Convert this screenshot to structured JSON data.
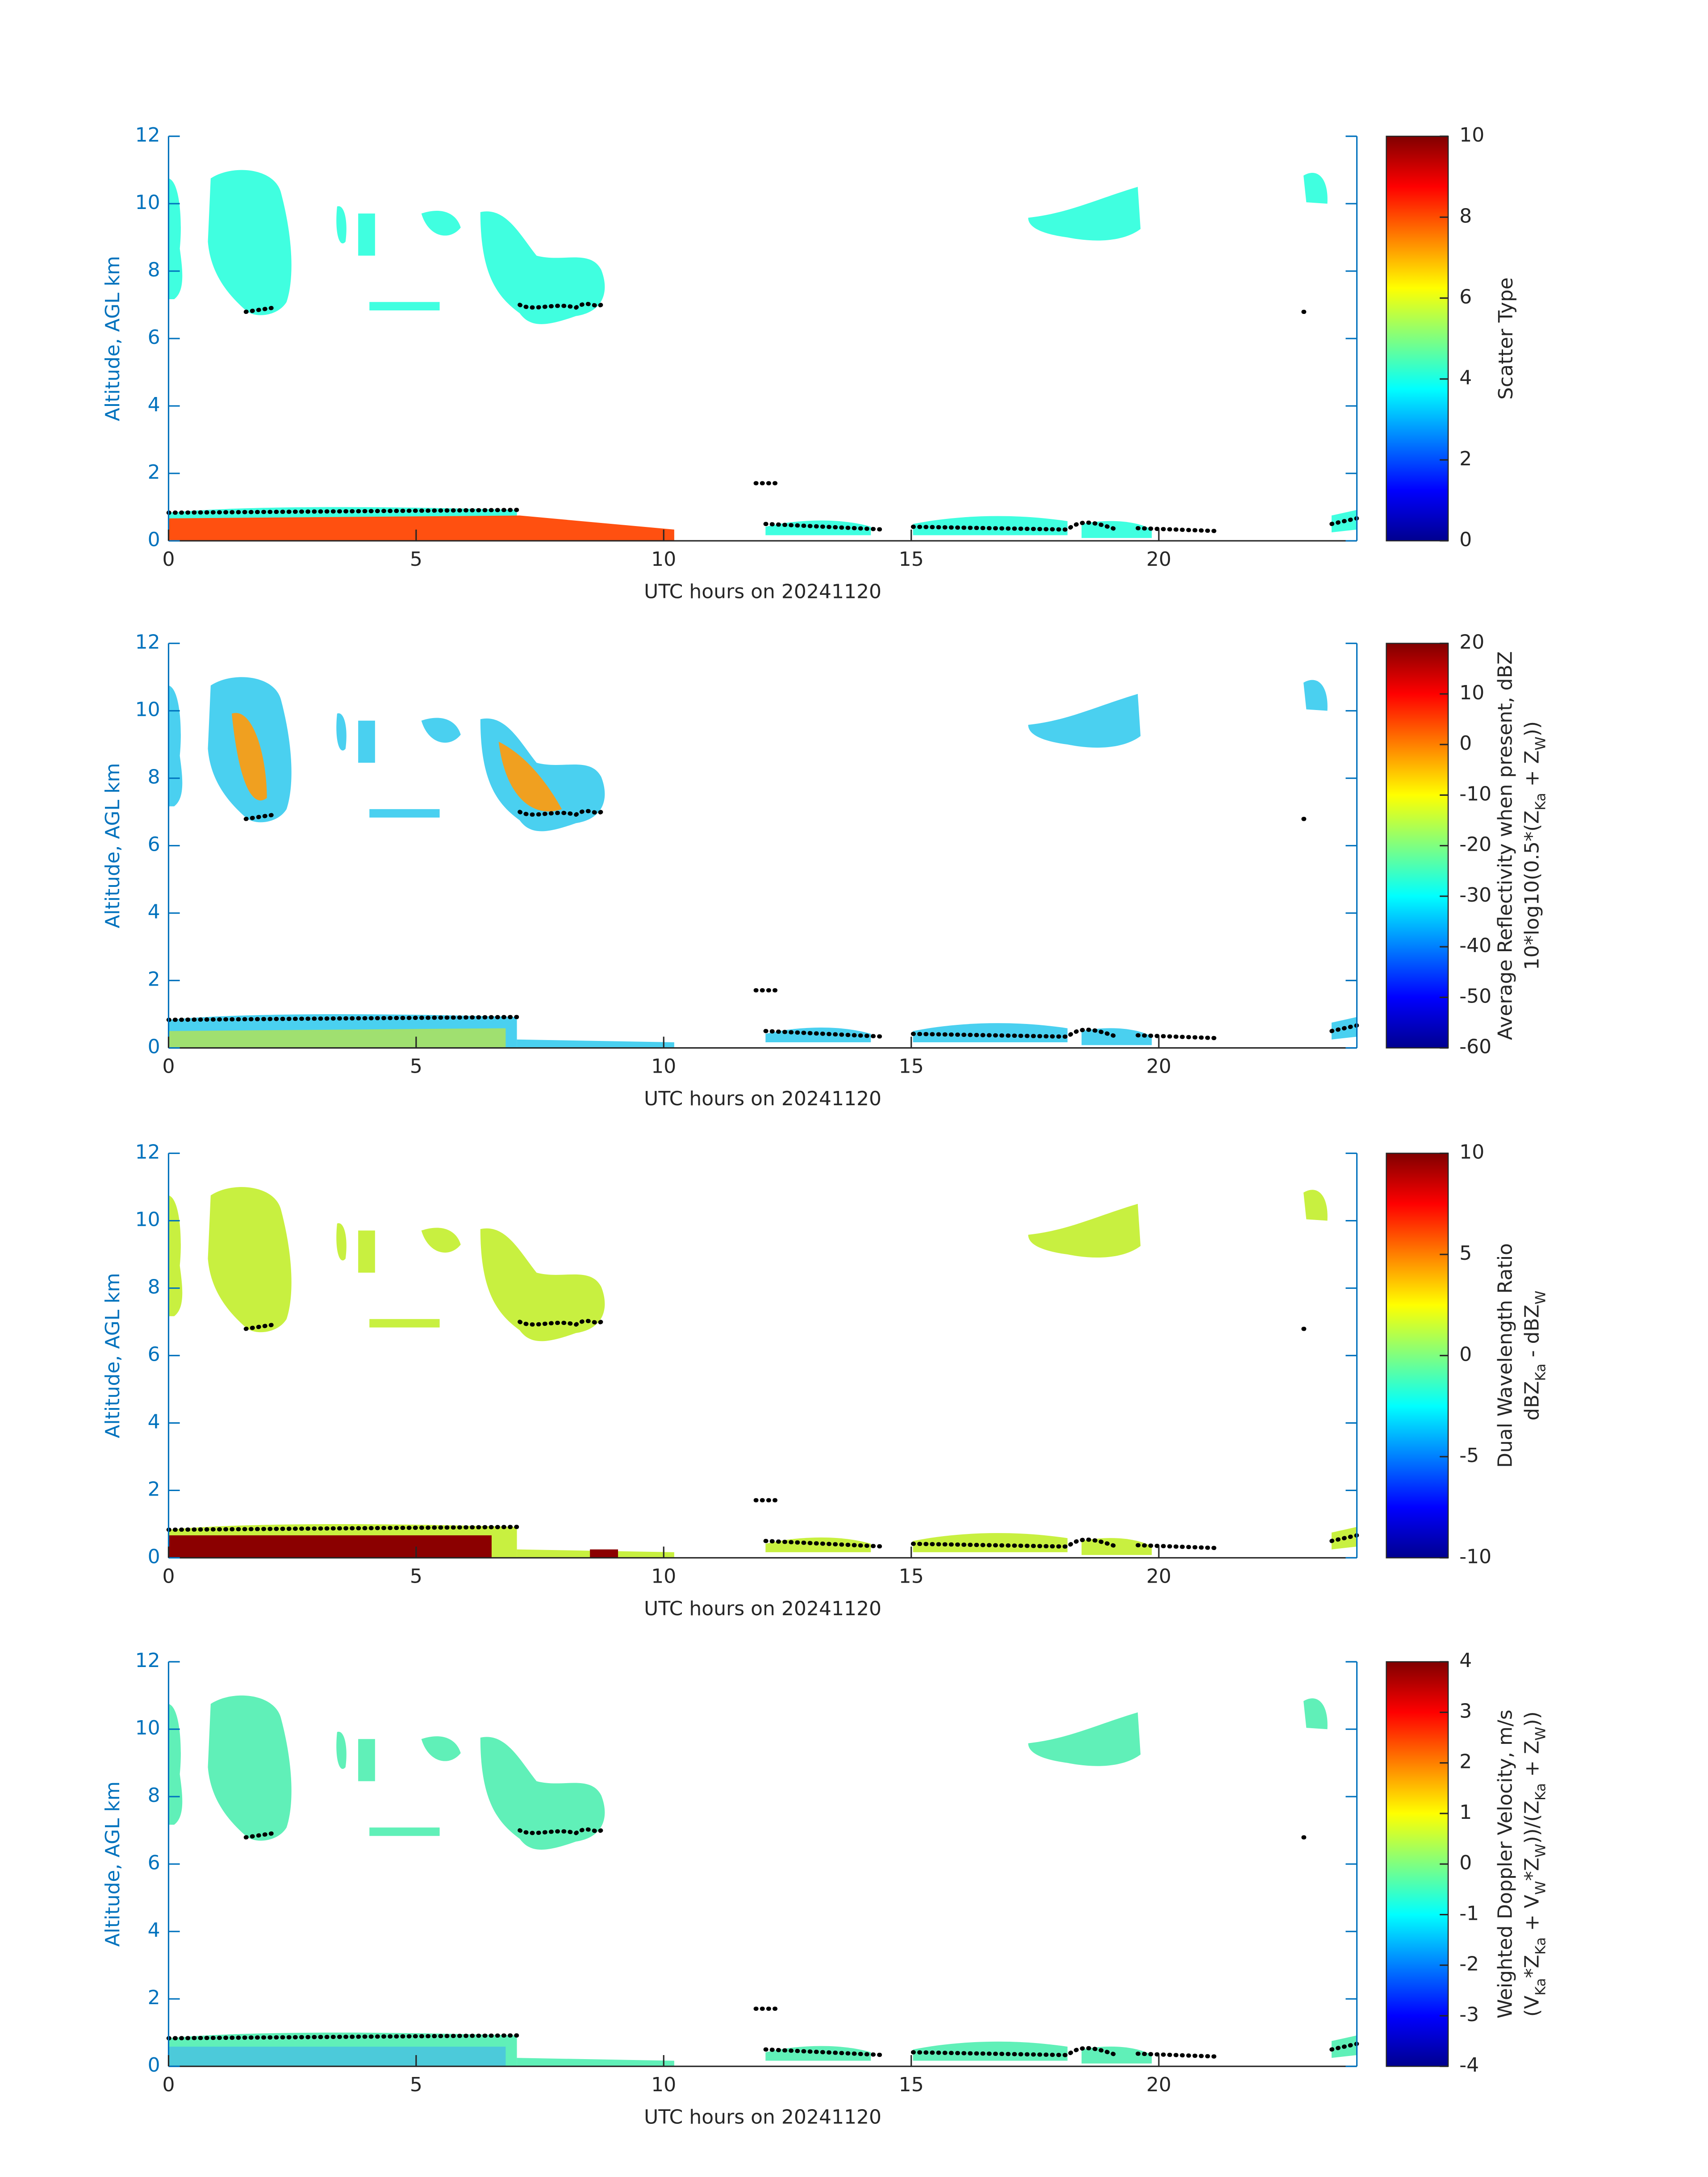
{
  "chart_data": [
    {
      "type": "heatmap",
      "colormap": "jet",
      "xlabel": "UTC hours on 20241120",
      "ylabel": "Altitude, AGL km",
      "xlim": [
        0,
        24
      ],
      "xticks": [
        0,
        5,
        10,
        15,
        20
      ],
      "ylim": [
        0,
        12
      ],
      "yticks": [
        0,
        2,
        4,
        6,
        8,
        10,
        12
      ],
      "colorbar": {
        "clim": [
          0,
          10
        ],
        "cticks": [
          0,
          2,
          4,
          6,
          8,
          10
        ],
        "label": [
          [
            {
              "text": "Scatter Type",
              "sub": false
            }
          ]
        ]
      }
    },
    {
      "type": "heatmap",
      "colormap": "jet",
      "xlabel": "UTC hours on 20241120",
      "ylabel": "Altitude, AGL km",
      "xlim": [
        0,
        24
      ],
      "xticks": [
        0,
        5,
        10,
        15,
        20
      ],
      "ylim": [
        0,
        12
      ],
      "yticks": [
        0,
        2,
        4,
        6,
        8,
        10,
        12
      ],
      "colorbar": {
        "clim": [
          -60,
          20
        ],
        "cticks": [
          -60,
          -50,
          -40,
          -30,
          -20,
          -10,
          0,
          10,
          20
        ],
        "label": [
          [
            {
              "text": "Average Reflectivity when present, dBZ",
              "sub": false
            }
          ],
          [
            {
              "text": "10*log10(0.5*(Z",
              "sub": false
            },
            {
              "text": "Ka",
              "sub": true
            },
            {
              "text": " + Z",
              "sub": false
            },
            {
              "text": "W",
              "sub": true
            },
            {
              "text": "))",
              "sub": false
            }
          ]
        ]
      }
    },
    {
      "type": "heatmap",
      "colormap": "jet",
      "xlabel": "UTC hours on 20241120",
      "ylabel": "Altitude, AGL km",
      "xlim": [
        0,
        24
      ],
      "xticks": [
        0,
        5,
        10,
        15,
        20
      ],
      "ylim": [
        0,
        12
      ],
      "yticks": [
        0,
        2,
        4,
        6,
        8,
        10,
        12
      ],
      "colorbar": {
        "clim": [
          -10,
          10
        ],
        "cticks": [
          -10,
          -5,
          0,
          5,
          10
        ],
        "label": [
          [
            {
              "text": "Dual Wavelength Ratio",
              "sub": false
            }
          ],
          [
            {
              "text": "dBZ",
              "sub": false
            },
            {
              "text": "Ka",
              "sub": true
            },
            {
              "text": " - dBZ",
              "sub": false
            },
            {
              "text": "W",
              "sub": true
            }
          ]
        ]
      }
    },
    {
      "type": "heatmap",
      "colormap": "jet",
      "xlabel": "UTC hours on 20241120",
      "ylabel": "Altitude, AGL km",
      "xlim": [
        0,
        24
      ],
      "xticks": [
        0,
        5,
        10,
        15,
        20
      ],
      "ylim": [
        0,
        12
      ],
      "yticks": [
        0,
        2,
        4,
        6,
        8,
        10,
        12
      ],
      "colorbar": {
        "clim": [
          -4,
          4
        ],
        "cticks": [
          -4,
          -3,
          -2,
          -1,
          0,
          1,
          2,
          3,
          4
        ],
        "label": [
          [
            {
              "text": "Weighted Doppler Velocity, m/s",
              "sub": false
            }
          ],
          [
            {
              "text": "(V",
              "sub": false
            },
            {
              "text": "Ka",
              "sub": true
            },
            {
              "text": "*Z",
              "sub": false
            },
            {
              "text": "Ka",
              "sub": true
            },
            {
              "text": " + V",
              "sub": false
            },
            {
              "text": "W",
              "sub": true
            },
            {
              "text": "*Z",
              "sub": false
            },
            {
              "text": "W",
              "sub": true
            },
            {
              "text": "))/(Z",
              "sub": false
            },
            {
              "text": "Ka",
              "sub": true
            },
            {
              "text": " + Z",
              "sub": false
            },
            {
              "text": "W",
              "sub": true
            },
            {
              "text": "))",
              "sub": false
            }
          ]
        ]
      }
    }
  ]
}
